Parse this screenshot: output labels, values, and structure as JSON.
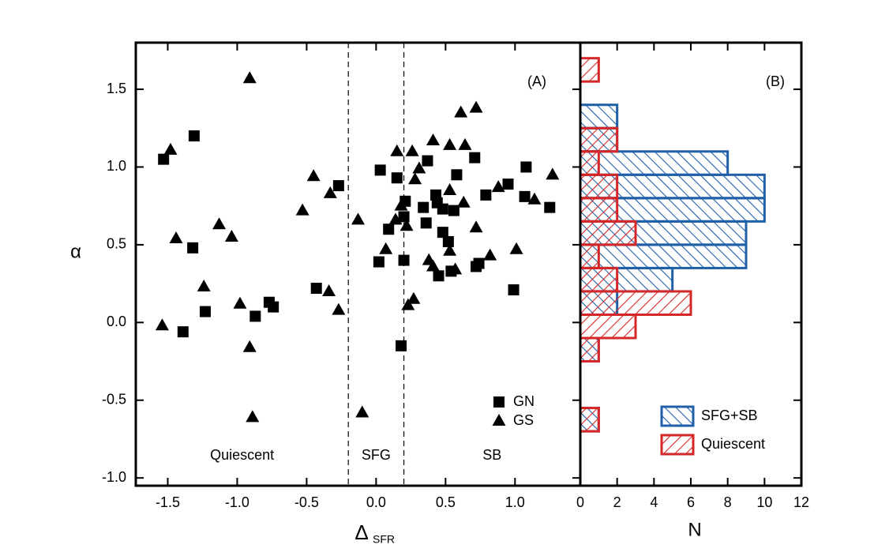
{
  "chart_data": [
    {
      "type": "scatter",
      "panel_label": "(A)",
      "xlabel": "Δ",
      "xlabel_subscript": "SFR",
      "ylabel": "α",
      "xlim": [
        -1.73,
        1.47
      ],
      "ylim": [
        -1.05,
        1.8
      ],
      "xticks": [
        -1.5,
        {
          "value": -1,
          "label": "-1.0"
        },
        -0.5,
        {
          "value": 0,
          "label": "0.0"
        },
        0.5,
        {
          "value": 1,
          "label": "1.0"
        }
      ],
      "yticks": [
        {
          "value": -1,
          "label": "-1.0"
        },
        -0.5,
        {
          "value": 0,
          "label": "0.0"
        },
        0.5,
        {
          "value": 1,
          "label": "1.0"
        },
        1.5
      ],
      "vlines": [
        -0.2,
        0.2
      ],
      "regions": [
        "Quiescent",
        "SFG",
        "SB"
      ],
      "series": [
        {
          "name": "GN",
          "marker": "square",
          "color": "#000000",
          "x": [
            -1.53,
            -1.31,
            -1.32,
            -1.39,
            -1.23,
            -0.87,
            -0.77,
            -0.74,
            -0.43,
            -0.27,
            0.03,
            0.15,
            0.09,
            0.02,
            0.2,
            0.18,
            0.21,
            0.2,
            0.37,
            0.34,
            0.36,
            0.43,
            0.44,
            0.48,
            0.52,
            0.48,
            0.45,
            0.54,
            0.58,
            0.56,
            0.71,
            0.72,
            0.74,
            0.79,
            0.95,
            0.99,
            1.08,
            1.07,
            1.25
          ],
          "y": [
            1.05,
            1.2,
            0.48,
            -0.06,
            0.07,
            0.04,
            0.13,
            0.1,
            0.22,
            0.88,
            0.98,
            0.93,
            0.6,
            0.39,
            0.4,
            -0.15,
            0.78,
            0.68,
            1.04,
            0.74,
            0.64,
            0.82,
            0.77,
            0.58,
            0.52,
            0.73,
            0.3,
            0.33,
            0.95,
            0.72,
            1.06,
            0.36,
            0.38,
            0.82,
            0.89,
            0.21,
            1.0,
            0.81,
            0.74
          ]
        },
        {
          "name": "GS",
          "marker": "triangle",
          "color": "#000000",
          "x": [
            -1.54,
            -1.48,
            -1.44,
            -1.24,
            -1.13,
            -1.04,
            -0.98,
            -0.91,
            -0.89,
            -0.91,
            -0.53,
            -0.45,
            -0.33,
            -0.34,
            -0.27,
            -0.13,
            -0.1,
            0.07,
            0.15,
            0.14,
            0.18,
            0.22,
            0.26,
            0.28,
            0.31,
            0.23,
            0.27,
            0.41,
            0.38,
            0.41,
            0.53,
            0.53,
            0.53,
            0.57,
            0.61,
            0.64,
            0.63,
            0.72,
            0.72,
            0.82,
            0.88,
            1.01,
            1.14,
            1.27
          ],
          "y": [
            -0.02,
            1.11,
            0.54,
            0.23,
            0.63,
            0.55,
            0.12,
            -0.16,
            -0.61,
            1.57,
            0.72,
            0.94,
            0.83,
            0.2,
            0.08,
            0.66,
            -0.58,
            0.47,
            1.1,
            0.66,
            0.75,
            0.62,
            1.1,
            0.92,
            0.99,
            0.11,
            0.15,
            1.17,
            0.4,
            0.36,
            1.14,
            0.46,
            0.85,
            0.34,
            1.35,
            1.14,
            0.77,
            1.38,
            0.61,
            0.43,
            0.87,
            0.47,
            0.79,
            0.95
          ]
        }
      ]
    },
    {
      "type": "histogram",
      "orientation": "horizontal",
      "panel_label": "(B)",
      "xlabel": "N",
      "xlim": [
        0,
        12
      ],
      "xticks": [
        0,
        2,
        4,
        6,
        8,
        10,
        12
      ],
      "ylim": [
        -1.05,
        1.8
      ],
      "bins": [
        -0.7,
        -0.55,
        -0.4,
        -0.25,
        -0.1,
        0.05,
        0.2,
        0.35,
        0.5,
        0.65,
        0.8,
        0.95,
        1.1,
        1.25,
        1.4,
        1.55,
        1.7
      ],
      "series": [
        {
          "name": "SFG+SB",
          "color": "#1f5fa8",
          "hatch": "\\",
          "values": [
            1,
            0,
            0,
            1,
            0,
            2,
            5,
            9,
            9,
            10,
            10,
            8,
            2,
            2,
            0,
            0
          ]
        },
        {
          "name": "Quiescent",
          "color": "#d62728",
          "hatch": "/",
          "values": [
            1,
            0,
            0,
            1,
            3,
            6,
            2,
            1,
            3,
            2,
            2,
            1,
            2,
            0,
            0,
            1
          ]
        }
      ]
    }
  ]
}
